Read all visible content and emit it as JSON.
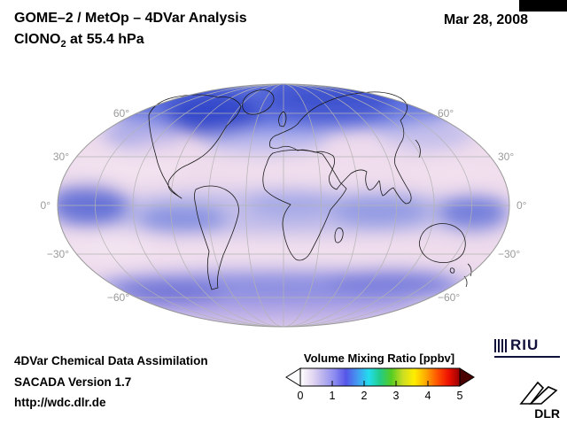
{
  "header": {
    "title": "GOME–2 / MetOp – 4DVar Analysis",
    "species_prefix": "ClONO",
    "species_sub": "2",
    "species_suffix": " at 55.4 hPa",
    "date": "Mar 28, 2008"
  },
  "map": {
    "lat_labels": [
      "60°",
      "30°",
      "0°",
      "−30°",
      "−60°"
    ]
  },
  "legend": {
    "title": "Volume Mixing Ratio [ppbv]",
    "ticks": [
      "0",
      "1",
      "2",
      "3",
      "4",
      "5"
    ],
    "colors": [
      "#ffffff",
      "#e6daf2",
      "#b9b2ee",
      "#8c8cf0",
      "#5555e8",
      "#4499f0",
      "#22ddee",
      "#22cc88",
      "#55cc22",
      "#ccdd22",
      "#ffee00",
      "#ffaa00",
      "#ff5500",
      "#ee1100",
      "#990000"
    ],
    "under_color": "#ffffff",
    "over_color": "#4a0000"
  },
  "footer": {
    "line1": "4DVar Chemical Data Assimilation",
    "line2": "SACADA Version 1.7",
    "line3": "http://wdc.dlr.de"
  },
  "logos": {
    "riu": "RIU",
    "dlr": "DLR"
  },
  "chart_data": {
    "type": "heatmap",
    "projection": "mollweide-global",
    "title": "GOME-2 / MetOp - 4DVar Analysis, ClONO2 at 55.4 hPa",
    "date": "Mar 28, 2008",
    "colorbar": {
      "label": "Volume Mixing Ratio [ppbv]",
      "ticks": [
        0,
        1,
        2,
        3,
        4,
        5
      ],
      "range": [
        0,
        5
      ],
      "units": "ppbv",
      "open_ended": true
    },
    "latitude_gridlines_deg": [
      60,
      30,
      0,
      -30,
      -60
    ],
    "qualitative_pattern": "high values (blue, 1-2 ppbv) over polar cap near 60-90N, along equatorial band and in 50-70S band; low values (pale pink, <0.5 ppbv) in subtropical bands near 30N and 30S"
  }
}
